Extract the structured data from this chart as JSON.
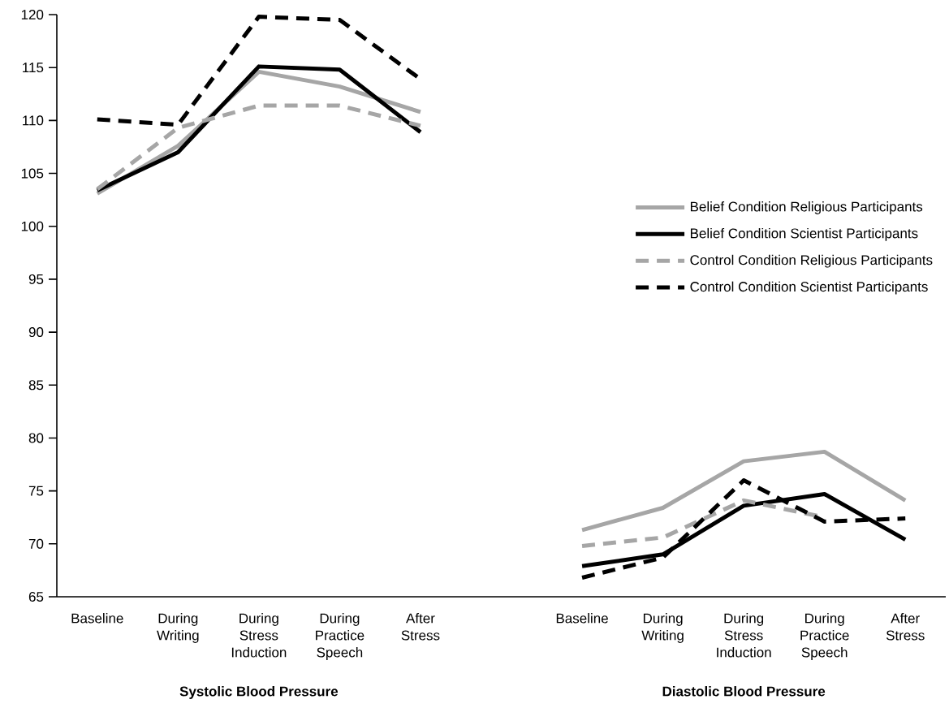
{
  "chart_data": {
    "type": "line",
    "categories": [
      "Baseline",
      "During Writing",
      "During Stress Induction",
      "During Practice Speech",
      "After Stress",
      null,
      "Baseline",
      "During Writing",
      "During Stress Induction",
      "During Practice Speech",
      "After Stress"
    ],
    "series": [
      {
        "name": "Belief Condition Religious Participants",
        "color": "#a6a6a6",
        "line_style": "solid",
        "values": [
          103.1,
          107.6,
          114.6,
          113.2,
          110.8,
          null,
          71.3,
          73.4,
          77.8,
          78.7,
          74.1
        ]
      },
      {
        "name": "Belief Condition Scientist Participants",
        "color": "#000000",
        "line_style": "solid",
        "values": [
          103.4,
          107.0,
          115.1,
          114.8,
          108.9,
          null,
          67.9,
          69.0,
          73.6,
          74.7,
          70.4
        ]
      },
      {
        "name": "Control Condition Religious Participants",
        "color": "#a6a6a6",
        "line_style": "dashed",
        "values": [
          103.5,
          109.3,
          111.4,
          111.4,
          109.5,
          null,
          69.8,
          70.6,
          74.1,
          72.5,
          null
        ]
      },
      {
        "name": "Control Condition Scientist Participants",
        "color": "#000000",
        "line_style": "dashed",
        "values": [
          110.1,
          109.6,
          119.8,
          119.5,
          113.9,
          null,
          66.8,
          68.7,
          76.0,
          72.1,
          72.4
        ]
      }
    ],
    "ylim": [
      65,
      120
    ],
    "yticks": [
      65,
      70,
      75,
      80,
      85,
      90,
      95,
      100,
      105,
      110,
      115,
      120
    ],
    "grid": false,
    "legend": "right",
    "marker": "none",
    "annotations": [
      "Systolic Blood Pressure",
      "Diastolic Blood Pressure"
    ]
  }
}
